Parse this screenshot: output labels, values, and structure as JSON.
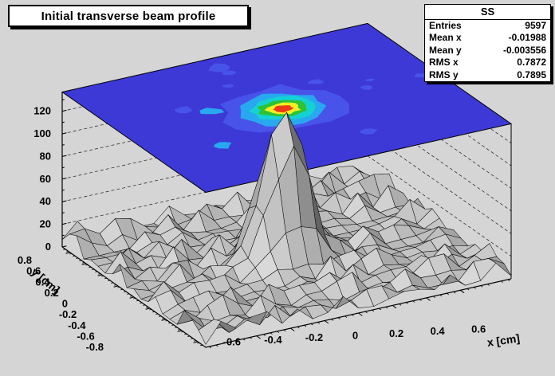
{
  "canvas": {
    "bg": "#d5d5d5"
  },
  "title": {
    "text": "Initial transverse beam profile"
  },
  "stats": {
    "header": "SS",
    "rows": [
      {
        "label": "Entries",
        "value": "9597"
      },
      {
        "label": "Mean x",
        "value": "-0.01988"
      },
      {
        "label": "Mean y",
        "value": "-0.003556"
      },
      {
        "label": "RMS x",
        "value": "0.7872"
      },
      {
        "label": "RMS y",
        "value": "0.7895"
      }
    ]
  },
  "chart_data": {
    "type": "surface",
    "title": "Initial transverse beam profile",
    "xlabel": "x [cm]",
    "ylabel": "y [cm]",
    "x_range": [
      -0.9,
      0.9
    ],
    "y_range": [
      -0.9,
      0.9
    ],
    "z_box_max": 137,
    "x_ticks": [
      "-0.6",
      "-0.4",
      "-0.2",
      "0",
      "0.2",
      "0.4",
      "0.6"
    ],
    "y_ticks": [
      "0.8",
      "0.6",
      "0.4",
      "0.2",
      "0",
      "-0.2",
      "-0.4",
      "-0.6",
      "-0.8"
    ],
    "z_ticks": [
      0,
      20,
      40,
      60,
      80,
      100,
      120
    ],
    "grid_n": 20,
    "peak": {
      "amplitude": 128,
      "sigma": 0.115,
      "x0": -0.02,
      "y0": 0.0
    },
    "noise": {
      "base": 2.5,
      "amp": 18,
      "seed": 1234
    },
    "seed": 77,
    "surface_colors": {
      "mesh": "#000000"
    },
    "contour": {
      "base_color": "#3d39d6",
      "patch_count": 12,
      "levels": [
        {
          "r": 0.33,
          "color": "#4853ea"
        },
        {
          "r": 0.235,
          "color": "#28a8ee"
        },
        {
          "r": 0.175,
          "color": "#15d2d2"
        },
        {
          "r": 0.13,
          "color": "#2ec234"
        },
        {
          "r": 0.09,
          "color": "#f4ef25"
        },
        {
          "r": 0.05,
          "color": "#ee3a17"
        }
      ]
    },
    "stats_summary": {
      "entries": 9597,
      "mean_x": -0.01988,
      "mean_y": -0.003556,
      "rms_x": 0.7872,
      "rms_y": 0.7895
    }
  }
}
